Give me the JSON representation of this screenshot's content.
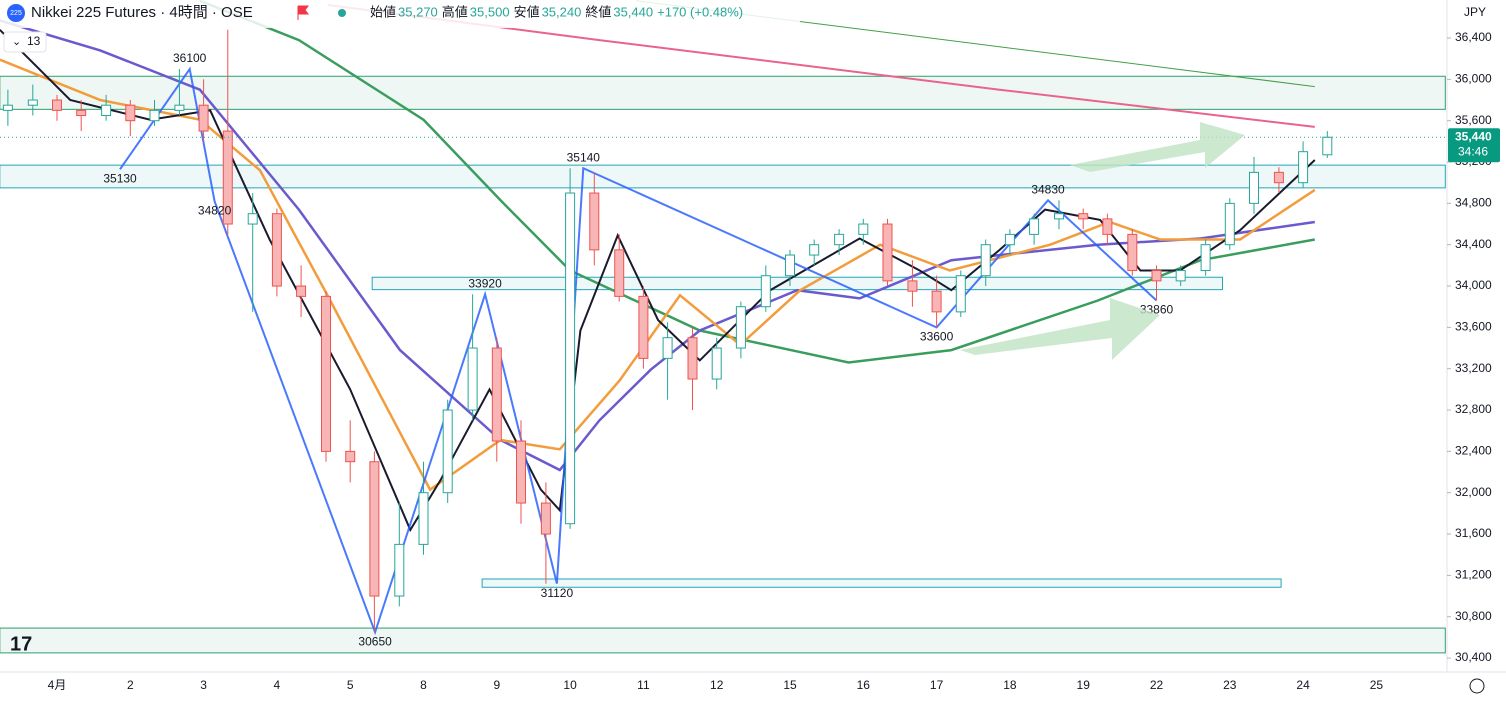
{
  "chart_data": {
    "type": "candlestick",
    "title": "Nikkei 225 Futures · 4時間 · OSE",
    "symbol_badge": "225",
    "ohlc_legend": [
      {
        "name": "始値",
        "value": 35270,
        "value_label": "35,270"
      },
      {
        "name": "高値",
        "value": 35500,
        "value_label": "35,500"
      },
      {
        "name": "安値",
        "value": 35240,
        "value_label": "35,240"
      },
      {
        "name": "終値",
        "value": 35440,
        "value_label": "35,440"
      }
    ],
    "change": "+170 (+0.48%)",
    "indicator_value": "13",
    "currency": "JPY",
    "last_price": {
      "value": 35440,
      "label": "35,440"
    },
    "countdown": "34:46",
    "categories": [
      "4月",
      "2",
      "3",
      "4",
      "5",
      "8",
      "9",
      "10",
      "11",
      "12",
      "15",
      "16",
      "17",
      "18",
      "19",
      "22",
      "23",
      "24",
      "25"
    ],
    "xlim": [
      -0.78,
      18.94
    ],
    "ylim": [
      30265,
      36768
    ],
    "yticks": [
      {
        "value": 30400,
        "label": "30,400"
      },
      {
        "value": 30800,
        "label": "30,800"
      },
      {
        "value": 31200,
        "label": "31,200"
      },
      {
        "value": 31600,
        "label": "31,600"
      },
      {
        "value": 32000,
        "label": "32,000"
      },
      {
        "value": 32400,
        "label": "32,400"
      },
      {
        "value": 32800,
        "label": "32,800"
      },
      {
        "value": 33200,
        "label": "33,200"
      },
      {
        "value": 33600,
        "label": "33,600"
      },
      {
        "value": 34000,
        "label": "34,000"
      },
      {
        "value": 34400,
        "label": "34,400"
      },
      {
        "value": 34800,
        "label": "34,800"
      },
      {
        "value": 35200,
        "label": "35,200"
      },
      {
        "value": 35600,
        "label": "35,600"
      },
      {
        "value": 36000,
        "label": "36,000"
      },
      {
        "value": 36400,
        "label": "36,400"
      }
    ],
    "up_color": "#26a69a",
    "down_color": "#ef5350",
    "candles": [
      [
        -0.67,
        35700,
        35900,
        35550,
        35750
      ],
      [
        -0.33,
        35750,
        35950,
        35650,
        35800
      ],
      [
        0,
        35800,
        35850,
        35600,
        35700
      ],
      [
        0.33,
        35700,
        35800,
        35500,
        35650
      ],
      [
        0.67,
        35650,
        35850,
        35600,
        35750
      ],
      [
        1,
        35750,
        35800,
        35450,
        35600
      ],
      [
        1.33,
        35600,
        35800,
        35550,
        35700
      ],
      [
        1.67,
        35700,
        36100,
        35650,
        35750
      ],
      [
        2,
        35750,
        36000,
        35400,
        35500
      ],
      [
        2.33,
        35500,
        36480,
        34500,
        34600
      ],
      [
        2.67,
        34600,
        34900,
        33750,
        34700
      ],
      [
        3,
        34700,
        34750,
        33900,
        34000
      ],
      [
        3.33,
        34000,
        34200,
        33700,
        33900
      ],
      [
        3.67,
        33900,
        33950,
        32300,
        32400
      ],
      [
        4,
        32400,
        32700,
        32100,
        32300
      ],
      [
        4.33,
        32300,
        32400,
        30650,
        31000
      ],
      [
        4.67,
        31000,
        31900,
        30900,
        31500
      ],
      [
        5,
        31500,
        32300,
        31400,
        32000
      ],
      [
        5.33,
        32000,
        32900,
        31900,
        32800
      ],
      [
        5.67,
        32800,
        33920,
        32700,
        33400
      ],
      [
        6,
        33400,
        33500,
        32300,
        32500
      ],
      [
        6.33,
        32500,
        32700,
        31700,
        31900
      ],
      [
        6.67,
        31900,
        32100,
        31120,
        31600
      ],
      [
        7,
        31700,
        35140,
        31650,
        34900
      ],
      [
        7.33,
        34900,
        35100,
        34200,
        34350
      ],
      [
        7.67,
        34350,
        34500,
        33850,
        33900
      ],
      [
        8,
        33900,
        34000,
        33200,
        33300
      ],
      [
        8.33,
        33300,
        33650,
        32900,
        33500
      ],
      [
        8.67,
        33500,
        33600,
        32800,
        33100
      ],
      [
        9,
        33100,
        33500,
        33000,
        33400
      ],
      [
        9.33,
        33400,
        33850,
        33300,
        33800
      ],
      [
        9.67,
        33800,
        34200,
        33750,
        34100
      ],
      [
        10,
        34100,
        34350,
        34000,
        34300
      ],
      [
        10.33,
        34300,
        34450,
        34200,
        34400
      ],
      [
        10.67,
        34400,
        34550,
        34300,
        34500
      ],
      [
        11,
        34500,
        34650,
        34400,
        34600
      ],
      [
        11.33,
        34600,
        34650,
        34000,
        34050
      ],
      [
        11.67,
        34050,
        34250,
        33800,
        33950
      ],
      [
        12,
        33950,
        34100,
        33600,
        33750
      ],
      [
        12.33,
        33750,
        34150,
        33700,
        34100
      ],
      [
        12.67,
        34100,
        34450,
        34000,
        34400
      ],
      [
        13,
        34400,
        34550,
        34300,
        34500
      ],
      [
        13.33,
        34500,
        34700,
        34400,
        34650
      ],
      [
        13.67,
        34650,
        34830,
        34550,
        34700
      ],
      [
        14,
        34700,
        34750,
        34550,
        34650
      ],
      [
        14.33,
        34650,
        34700,
        34400,
        34500
      ],
      [
        14.67,
        34500,
        34550,
        34100,
        34150
      ],
      [
        15,
        34150,
        34200,
        33860,
        34050
      ],
      [
        15.33,
        34050,
        34200,
        34000,
        34150
      ],
      [
        15.67,
        34150,
        34450,
        34100,
        34400
      ],
      [
        16,
        34400,
        34850,
        34350,
        34800
      ],
      [
        16.33,
        34800,
        35250,
        34700,
        35100
      ],
      [
        16.67,
        35100,
        35150,
        34900,
        35000
      ],
      [
        17,
        35000,
        35400,
        34950,
        35300
      ],
      [
        17.33,
        35270,
        35500,
        35240,
        35440
      ]
    ],
    "series": [
      {
        "name": "MA200",
        "color": "#e8648c",
        "width": 2,
        "x": [
          3.7,
          7.4,
          12.86,
          17.16
        ],
        "values": [
          36720,
          36380,
          35900,
          35540
        ]
      },
      {
        "name": "MA-long",
        "color": "#43a047",
        "width": 1,
        "x": [
          7.9,
          17.16
        ],
        "values": [
          36760,
          35930
        ]
      },
      {
        "name": "MA-green",
        "color": "#3a9d5d",
        "width": 2.5,
        "x": [
          1.95,
          3.3,
          5,
          6.05,
          7,
          8.77,
          10.8,
          12.2,
          14.2,
          15.6,
          17.16
        ],
        "values": [
          36760,
          36380,
          35610,
          34830,
          34150,
          33570,
          33260,
          33380,
          33860,
          34250,
          34450
        ]
      },
      {
        "name": "MA-purple",
        "color": "#6a5acd",
        "width": 2.5,
        "x": [
          -0.78,
          0.59,
          1.95,
          3.3,
          4.68,
          6.05,
          6.86,
          7.4,
          8.1,
          8.77,
          10.1,
          10.95,
          12.2,
          14.2,
          15.6,
          17.16
        ],
        "values": [
          36570,
          36280,
          35900,
          34740,
          33380,
          32510,
          32220,
          32700,
          33190,
          33570,
          33960,
          33880,
          34250,
          34400,
          34460,
          34620
        ]
      },
      {
        "name": "MA-orange",
        "color": "#f39c3c",
        "width": 2.5,
        "x": [
          -0.78,
          0.59,
          1.95,
          2.77,
          3.72,
          5.09,
          6.05,
          6.86,
          7.68,
          8.5,
          9.32,
          10.14,
          11.23,
          12.18,
          13.55,
          14.36,
          15.05,
          16.14,
          17.16
        ],
        "values": [
          36190,
          35800,
          35610,
          35120,
          33870,
          32030,
          32510,
          32420,
          33090,
          33910,
          33430,
          33960,
          34400,
          34150,
          34400,
          34620,
          34450,
          34450,
          34930
        ]
      },
      {
        "name": "MA-black",
        "color": "#1a1a2e",
        "width": 2,
        "x": [
          -0.78,
          0.18,
          1.27,
          2.09,
          2.9,
          4,
          4.82,
          5.23,
          5.9,
          6.6,
          6.86,
          7.14,
          7.65,
          8.2,
          8.77,
          9.73,
          10.95,
          11.77,
          12.2,
          12.86,
          13.48,
          14.23,
          14.78,
          15.32,
          16.14,
          17.16
        ],
        "values": [
          36480,
          35800,
          35610,
          35700,
          34450,
          33000,
          31640,
          32120,
          33000,
          32030,
          31830,
          33570,
          34490,
          33670,
          33280,
          33960,
          34460,
          34150,
          33960,
          34350,
          34740,
          34640,
          34150,
          34150,
          34540,
          35220
        ]
      }
    ],
    "pivots": [
      {
        "x": 0.86,
        "value": 35130
      },
      {
        "x": 1.81,
        "value": 36100
      },
      {
        "x": 2.15,
        "value": 34820
      },
      {
        "x": 4.34,
        "value": 30650
      },
      {
        "x": 5.84,
        "value": 33920
      },
      {
        "x": 6.82,
        "value": 31120
      },
      {
        "x": 7.18,
        "value": 35140
      },
      {
        "x": 12.0,
        "value": 33600
      },
      {
        "x": 13.52,
        "value": 34830
      },
      {
        "x": 15.0,
        "value": 33860
      }
    ],
    "zones": [
      {
        "x": [
          -0.78,
          18.94
        ],
        "y": [
          35710,
          36030
        ],
        "color": "#2e9e6e"
      },
      {
        "x": [
          -0.78,
          18.94
        ],
        "y": [
          34950,
          35170
        ],
        "color": "#22a6b3"
      },
      {
        "x": [
          4.3,
          15.9
        ],
        "y": [
          33965,
          34085
        ],
        "color": "#22a6b3"
      },
      {
        "x": [
          5.8,
          16.7
        ],
        "y": [
          31085,
          31165
        ],
        "color": "#22a6b3"
      },
      {
        "x": [
          -0.78,
          18.94
        ],
        "y": [
          30450,
          30690
        ],
        "color": "#2e9e6e"
      }
    ]
  }
}
